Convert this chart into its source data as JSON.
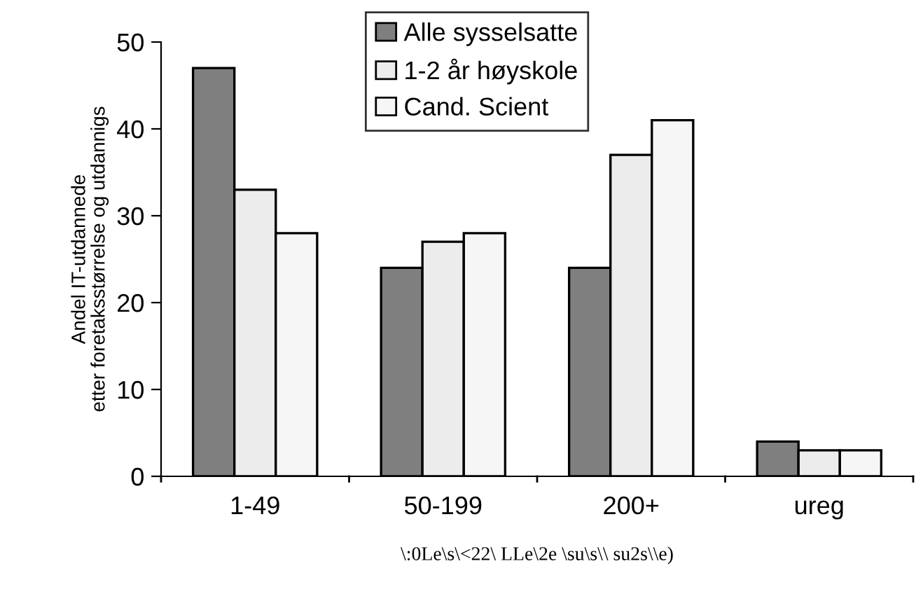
{
  "chart_data": {
    "type": "bar",
    "categories": [
      "1-49",
      "50-199",
      "200+",
      "ureg"
    ],
    "series": [
      {
        "name": "Alle sysselsatte",
        "color": "#7f7f7f",
        "values": [
          47,
          24,
          24,
          4
        ]
      },
      {
        "name": "1-2 år høyskole",
        "color": "#ececec",
        "values": [
          33,
          27,
          37,
          3
        ]
      },
      {
        "name": "Cand. Scient",
        "color": "#f6f6f6",
        "values": [
          28,
          28,
          41,
          3
        ]
      }
    ],
    "ylabel": "Andel IT-utdannede\netter foretaksstørrelse og utdannigs",
    "xlabel": "\\:0Le\\s\\<22\\ LLe\\2e \\su\\s\\\\ su2s\\\\e)",
    "ylim": [
      0,
      50
    ],
    "yticks": [
      0,
      10,
      20,
      30,
      40,
      50
    ],
    "grid": false,
    "legend": "top"
  }
}
